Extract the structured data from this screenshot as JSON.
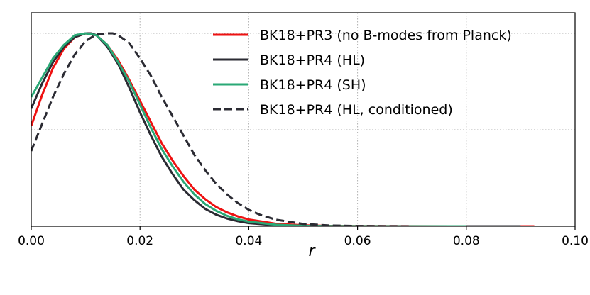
{
  "chart_data": {
    "type": "line",
    "title": "",
    "xlabel": "r",
    "ylabel": "",
    "xlim": [
      0,
      0.1
    ],
    "ylim": [
      0,
      1.0
    ],
    "x_ticks": [
      0.0,
      0.02,
      0.04,
      0.06,
      0.08,
      0.1
    ],
    "x_tick_labels": [
      "0.00",
      "0.02",
      "0.04",
      "0.06",
      "0.08",
      "0.10"
    ],
    "y_gridlines": [
      0.5,
      1.0
    ],
    "grid": true,
    "legend_position": "top-right",
    "series": [
      {
        "name": "BK18+PR3 (no B-modes from Planck)",
        "color": "#ee1111",
        "dash": "solid",
        "x": [
          0.0,
          0.002,
          0.004,
          0.006,
          0.008,
          0.01,
          0.012,
          0.014,
          0.016,
          0.018,
          0.02,
          0.022,
          0.024,
          0.026,
          0.028,
          0.03,
          0.032,
          0.034,
          0.036,
          0.038,
          0.04,
          0.045,
          0.05,
          0.055,
          0.06,
          0.07,
          0.08,
          0.0925
        ],
        "y": [
          0.52,
          0.68,
          0.82,
          0.92,
          0.98,
          1.0,
          0.99,
          0.94,
          0.86,
          0.76,
          0.65,
          0.54,
          0.43,
          0.34,
          0.26,
          0.19,
          0.14,
          0.1,
          0.072,
          0.051,
          0.035,
          0.013,
          0.005,
          0.002,
          0.001,
          0.0003,
          0.0001,
          0.0
        ]
      },
      {
        "name": "BK18+PR4 (HL)",
        "color": "#2b2b33",
        "dash": "solid",
        "x": [
          0.0,
          0.002,
          0.004,
          0.006,
          0.008,
          0.01,
          0.011,
          0.012,
          0.014,
          0.016,
          0.018,
          0.02,
          0.022,
          0.024,
          0.026,
          0.028,
          0.03,
          0.032,
          0.034,
          0.036,
          0.038,
          0.04,
          0.045,
          0.05,
          0.055,
          0.06,
          0.07,
          0.08,
          0.09
        ],
        "y": [
          0.61,
          0.74,
          0.85,
          0.93,
          0.98,
          1.0,
          1.0,
          0.99,
          0.93,
          0.84,
          0.72,
          0.59,
          0.47,
          0.36,
          0.27,
          0.19,
          0.135,
          0.09,
          0.06,
          0.04,
          0.026,
          0.016,
          0.005,
          0.0015,
          0.0005,
          0.0002,
          0.0,
          0.0,
          0.0
        ]
      },
      {
        "name": "BK18+PR4 (SH)",
        "color": "#2aa876",
        "dash": "solid",
        "x": [
          0.0,
          0.002,
          0.004,
          0.006,
          0.008,
          0.01,
          0.012,
          0.014,
          0.016,
          0.018,
          0.02,
          0.022,
          0.024,
          0.026,
          0.028,
          0.03,
          0.032,
          0.034,
          0.036,
          0.038,
          0.04,
          0.045,
          0.05,
          0.055,
          0.06,
          0.07,
          0.08
        ],
        "y": [
          0.67,
          0.77,
          0.87,
          0.94,
          0.99,
          1.0,
          0.99,
          0.94,
          0.85,
          0.75,
          0.63,
          0.51,
          0.4,
          0.31,
          0.23,
          0.165,
          0.115,
          0.08,
          0.054,
          0.036,
          0.024,
          0.008,
          0.0025,
          0.0008,
          0.0003,
          0.0,
          0.0
        ]
      },
      {
        "name": "BK18+PR4 (HL, conditioned)",
        "color": "#2b2b33",
        "dash": "dashed",
        "x": [
          0.0,
          0.002,
          0.004,
          0.006,
          0.008,
          0.01,
          0.012,
          0.014,
          0.015,
          0.016,
          0.018,
          0.02,
          0.022,
          0.024,
          0.026,
          0.028,
          0.03,
          0.032,
          0.034,
          0.036,
          0.038,
          0.04,
          0.042,
          0.045,
          0.05,
          0.055,
          0.06,
          0.065,
          0.07
        ],
        "y": [
          0.39,
          0.53,
          0.67,
          0.79,
          0.89,
          0.96,
          0.995,
          1.0,
          1.0,
          0.99,
          0.95,
          0.87,
          0.78,
          0.67,
          0.57,
          0.47,
          0.37,
          0.29,
          0.22,
          0.165,
          0.12,
          0.085,
          0.06,
          0.034,
          0.012,
          0.004,
          0.0015,
          0.0005,
          0.0
        ]
      }
    ]
  }
}
